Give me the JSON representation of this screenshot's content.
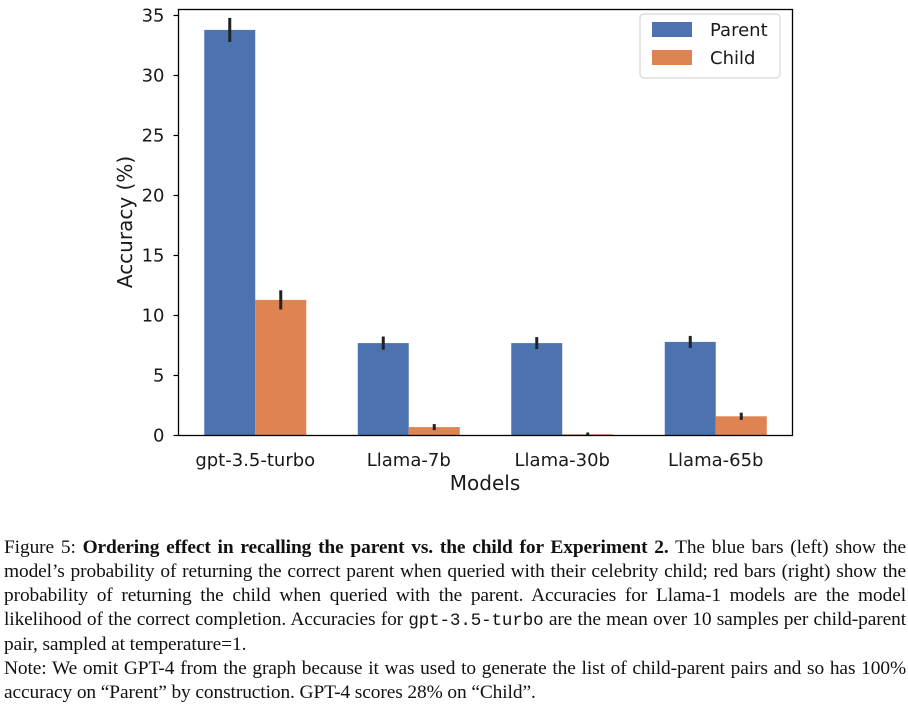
{
  "chart_data": {
    "type": "bar",
    "xlabel": "Models",
    "ylabel": "Accuracy (%)",
    "ylim": [
      0,
      35.5
    ],
    "yticks": [
      0,
      5,
      10,
      15,
      20,
      25,
      30,
      35
    ],
    "categories": [
      "gpt-3.5-turbo",
      "Llama-7b",
      "Llama-30b",
      "Llama-65b"
    ],
    "series": [
      {
        "name": "Parent",
        "color": "#4c72b0",
        "values": [
          33.8,
          7.7,
          7.7,
          7.8
        ],
        "errors": [
          1.0,
          0.55,
          0.5,
          0.5
        ]
      },
      {
        "name": "Child",
        "color": "#dd8452",
        "values": [
          11.3,
          0.7,
          0.1,
          1.6
        ],
        "errors": [
          0.8,
          0.25,
          0.15,
          0.3
        ]
      }
    ],
    "legend_position": "top-right",
    "grid": false
  },
  "caption": {
    "label": "Figure 5: ",
    "bold": "Ordering effect in recalling the parent vs. the child for Experiment 2.",
    "text_1": " The blue bars (left) show the model’s probability of returning the correct parent when queried with their celebrity child; red bars (right) show the probability of returning the child when queried with the parent. Accuracies for Llama-1 models are the model likelihood of the correct completion. Accuracies for ",
    "code": "gpt-3.5-turbo",
    "text_2": " are the mean over 10 samples per child-parent pair, sampled at temperature=1.",
    "note": "Note: We omit GPT-4 from the graph because it was used to generate the list of child-parent pairs and so has 100% accuracy on “Parent” by construction. GPT-4 scores 28% on “Child”."
  }
}
